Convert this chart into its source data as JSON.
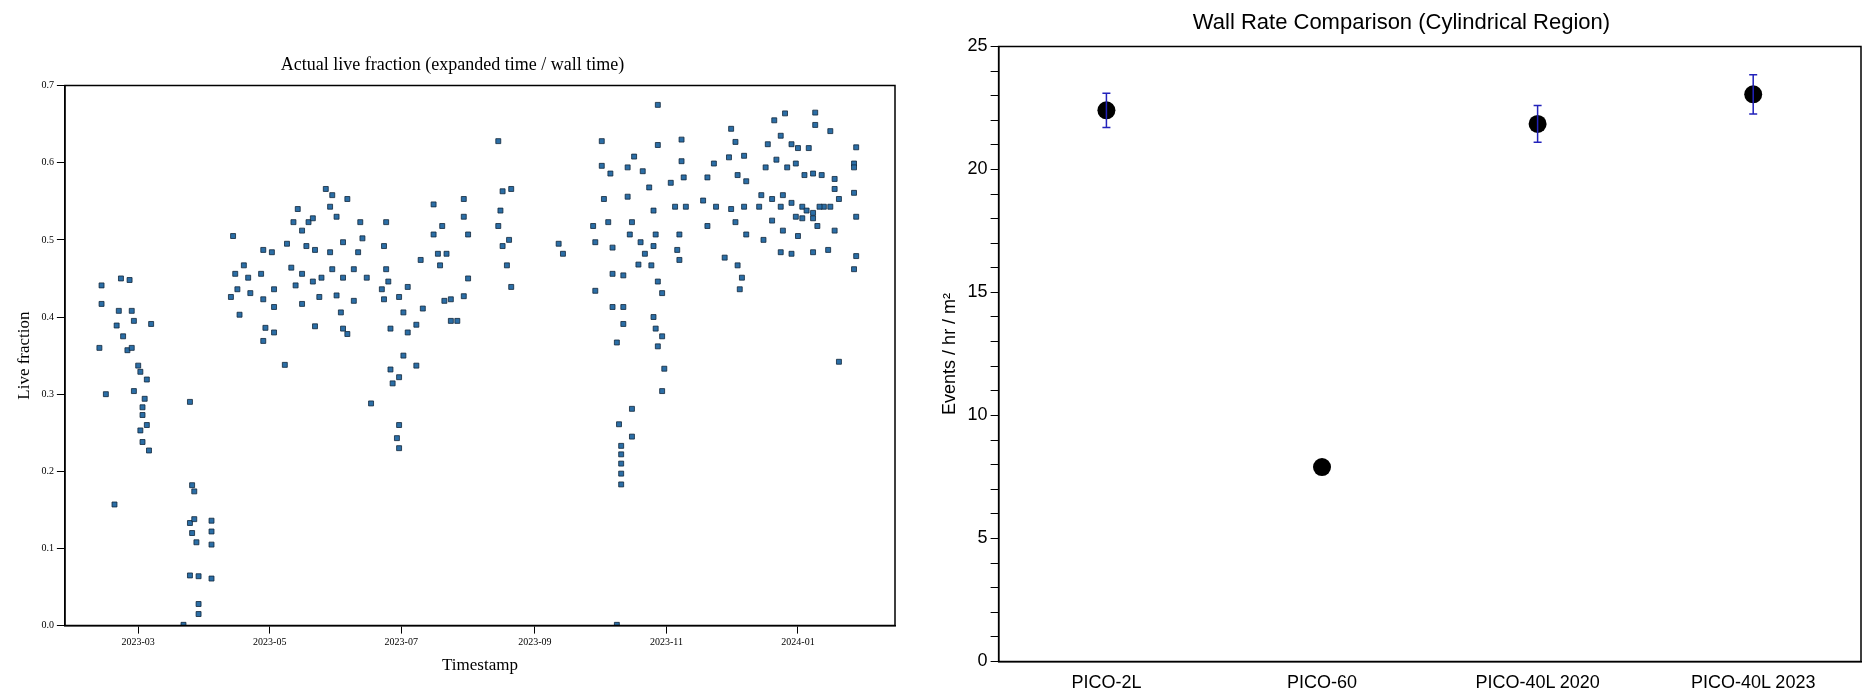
{
  "chart_data": [
    {
      "type": "scatter",
      "title": "Actual live fraction (expanded time / wall time)",
      "xlabel": "Timestamp",
      "ylabel": "Live fraction",
      "xlim": [
        "2023-01-26",
        "2024-02-15"
      ],
      "xticks": [
        {
          "value": "2023-03-01",
          "label": "2023-03"
        },
        {
          "value": "2023-05-01",
          "label": "2023-05"
        },
        {
          "value": "2023-07-01",
          "label": "2023-07"
        },
        {
          "value": "2023-09-01",
          "label": "2023-09"
        },
        {
          "value": "2023-11-01",
          "label": "2023-11"
        },
        {
          "value": "2024-01-01",
          "label": "2024-01"
        }
      ],
      "ylim": [
        0,
        0.7
      ],
      "yticks": [
        {
          "value": 0,
          "label": "0.0"
        },
        0.1,
        0.2,
        0.3,
        0.4,
        0.5,
        0.6,
        0.7
      ],
      "marker": "square",
      "x": [
        "2023-02-12",
        "2023-02-12",
        "2023-02-11",
        "2023-02-14",
        "2023-02-18",
        "2023-02-21",
        "2023-02-25",
        "2023-02-20",
        "2023-02-19",
        "2023-02-22",
        "2023-02-26",
        "2023-02-27",
        "2023-02-24",
        "2023-02-26",
        "2023-03-01",
        "2023-03-02",
        "2023-02-27",
        "2023-03-05",
        "2023-03-04",
        "2023-03-03",
        "2023-03-03",
        "2023-03-05",
        "2023-03-02",
        "2023-03-03",
        "2023-03-06",
        "2023-03-07",
        "2023-03-22",
        "2023-03-25",
        "2023-03-26",
        "2023-03-27",
        "2023-03-25",
        "2023-03-27",
        "2023-03-26",
        "2023-03-28",
        "2023-03-25",
        "2023-03-29",
        "2023-03-29",
        "2023-03-29",
        "2023-04-04",
        "2023-04-04",
        "2023-04-04",
        "2023-04-04",
        "2023-04-14",
        "2023-04-13",
        "2023-04-15",
        "2023-04-16",
        "2023-04-17",
        "2023-04-19",
        "2023-04-21",
        "2023-04-22",
        "2023-04-27",
        "2023-04-28",
        "2023-05-02",
        "2023-04-28",
        "2023-04-28",
        "2023-04-29",
        "2023-05-03",
        "2023-05-03",
        "2023-05-03",
        "2023-05-08",
        "2023-05-09",
        "2023-05-11",
        "2023-05-14",
        "2023-05-12",
        "2023-05-16",
        "2023-05-18",
        "2023-05-19",
        "2023-05-21",
        "2023-05-22",
        "2023-05-16",
        "2023-05-13",
        "2023-05-16",
        "2023-05-21",
        "2023-05-22",
        "2023-05-24",
        "2023-05-25",
        "2023-05-27",
        "2023-05-30",
        "2023-05-29",
        "2023-06-01",
        "2023-05-29",
        "2023-05-30",
        "2023-06-01",
        "2023-06-03",
        "2023-06-04",
        "2023-06-06",
        "2023-06-06",
        "2023-06-04",
        "2023-06-04",
        "2023-06-09",
        "2023-06-12",
        "2023-06-13",
        "2023-06-11",
        "2023-06-15",
        "2023-06-09",
        "2023-06-17",
        "2023-06-24",
        "2023-06-23",
        "2023-06-24",
        "2023-06-22",
        "2023-06-23",
        "2023-06-26",
        "2023-06-25",
        "2023-06-26",
        "2023-06-27",
        "2023-06-30",
        "2023-06-30",
        "2023-06-29",
        "2023-06-30",
        "2023-06-30",
        "2023-07-02",
        "2023-07-04",
        "2023-07-02",
        "2023-07-04",
        "2023-07-08",
        "2023-07-08",
        "2023-07-10",
        "2023-07-11",
        "2023-07-16",
        "2023-07-16",
        "2023-07-18",
        "2023-07-20",
        "2023-07-19",
        "2023-07-21",
        "2023-07-24",
        "2023-07-22",
        "2023-07-27",
        "2023-07-24",
        "2023-07-30",
        "2023-07-30",
        "2023-08-01",
        "2023-08-01",
        "2023-07-30",
        "2023-08-15",
        "2023-08-17",
        "2023-08-21",
        "2023-08-16",
        "2023-08-15",
        "2023-08-17",
        "2023-08-20",
        "2023-08-19",
        "2023-08-21",
        "2023-09-12",
        "2023-09-14",
        "2023-10-02",
        "2023-10-02",
        "2023-10-06",
        "2023-10-03",
        "2023-09-28",
        "2023-09-29",
        "2023-10-05",
        "2023-10-07",
        "2023-09-29",
        "2023-10-07",
        "2023-10-07",
        "2023-10-12",
        "2023-10-12",
        "2023-10-12",
        "2023-10-09",
        "2023-10-09",
        "2023-10-16",
        "2023-10-10",
        "2023-10-16",
        "2023-10-11",
        "2023-10-11",
        "2023-10-11",
        "2023-10-11",
        "2023-10-11",
        "2023-10-14",
        "2023-10-17",
        "2023-10-14",
        "2023-10-16",
        "2023-10-15",
        "2023-10-20",
        "2023-10-22",
        "2023-10-19",
        "2023-10-21",
        "2023-10-24",
        "2023-10-26",
        "2023-10-28",
        "2023-10-28",
        "2023-10-27",
        "2023-10-26",
        "2023-10-25",
        "2023-10-28",
        "2023-10-30",
        "2023-10-26",
        "2023-10-27",
        "2023-10-30",
        "2023-10-28",
        "2023-10-31",
        "2023-10-30",
        "2023-11-03",
        "2023-11-05",
        "2023-11-07",
        "2023-11-06",
        "2023-11-07",
        "2023-11-10",
        "2023-11-08",
        "2023-11-08",
        "2023-11-09",
        "2023-11-18",
        "2023-11-20",
        "2023-11-23",
        "2023-11-20",
        "2023-11-24",
        "2023-11-28",
        "2023-12-01",
        "2023-12-03",
        "2023-11-30",
        "2023-12-07",
        "2023-12-04",
        "2023-12-08",
        "2023-12-07",
        "2023-12-03",
        "2023-12-08",
        "2023-12-04",
        "2023-12-06",
        "2023-12-05",
        "2023-12-01",
        "2023-12-21",
        "2023-12-26",
        "2023-12-18",
        "2023-12-24",
        "2023-12-29",
        "2024-01-01",
        "2024-01-06",
        "2024-01-09",
        "2024-01-09",
        "2024-01-16",
        "2023-12-17",
        "2023-12-22",
        "2023-12-27",
        "2023-12-31",
        "2024-01-04",
        "2024-01-08",
        "2024-01-12",
        "2024-01-18",
        "2023-12-15",
        "2023-12-20",
        "2023-12-25",
        "2023-12-29",
        "2024-01-03",
        "2024-01-08",
        "2024-01-13",
        "2024-01-18",
        "2024-01-20",
        "2023-12-14",
        "2023-12-24",
        "2023-12-31",
        "2024-01-05",
        "2024-01-11",
        "2024-01-16",
        "2023-12-20",
        "2024-01-03",
        "2024-01-08",
        "2024-01-18",
        "2023-12-16",
        "2023-12-25",
        "2024-01-01",
        "2024-01-10",
        "2023-12-24",
        "2023-12-29",
        "2024-01-08",
        "2024-01-15",
        "2024-01-20",
        "2024-01-28",
        "2024-01-27",
        "2024-01-27",
        "2024-01-27",
        "2024-01-28",
        "2024-01-28",
        "2024-01-27"
      ],
      "series": [
        {
          "color": "#2b6ea6",
          "values": [
            0.441,
            0.417,
            0.36,
            0.3,
            0.157,
            0.45,
            0.448,
            0.408,
            0.389,
            0.375,
            0.408,
            0.395,
            0.357,
            0.36,
            0.337,
            0.329,
            0.304,
            0.319,
            0.294,
            0.283,
            0.273,
            0.26,
            0.253,
            0.238,
            0.227,
            0.391,
            0.001,
            0.29,
            0.182,
            0.174,
            0.133,
            0.138,
            0.12,
            0.108,
            0.065,
            0.064,
            0.028,
            0.015,
            0.136,
            0.122,
            0.105,
            0.061,
            0.505,
            0.426,
            0.456,
            0.436,
            0.403,
            0.467,
            0.451,
            0.431,
            0.456,
            0.487,
            0.484,
            0.423,
            0.369,
            0.386,
            0.38,
            0.413,
            0.436,
            0.338,
            0.495,
            0.464,
            0.54,
            0.523,
            0.512,
            0.492,
            0.523,
            0.528,
            0.487,
            0.456,
            0.441,
            0.417,
            0.446,
            0.388,
            0.426,
            0.451,
            0.566,
            0.558,
            0.543,
            0.53,
            0.484,
            0.462,
            0.428,
            0.406,
            0.385,
            0.378,
            0.553,
            0.497,
            0.451,
            0.462,
            0.523,
            0.502,
            0.484,
            0.451,
            0.421,
            0.288,
            0.523,
            0.492,
            0.462,
            0.436,
            0.423,
            0.385,
            0.446,
            0.332,
            0.314,
            0.322,
            0.26,
            0.243,
            0.23,
            0.426,
            0.406,
            0.439,
            0.35,
            0.38,
            0.337,
            0.39,
            0.474,
            0.411,
            0.546,
            0.507,
            0.482,
            0.518,
            0.467,
            0.421,
            0.395,
            0.482,
            0.395,
            0.423,
            0.553,
            0.53,
            0.507,
            0.45,
            0.427,
            0.628,
            0.563,
            0.566,
            0.538,
            0.518,
            0.492,
            0.5,
            0.467,
            0.439,
            0.495,
            0.482,
            0.628,
            0.596,
            0.586,
            0.553,
            0.518,
            0.497,
            0.523,
            0.49,
            0.434,
            0.456,
            0.413,
            0.413,
            0.391,
            0.454,
            0.367,
            0.001,
            0.281,
            0.261,
            0.245,
            0.233,
            0.222,
            0.21,
            0.197,
            0.183,
            0.594,
            0.608,
            0.556,
            0.523,
            0.507,
            0.497,
            0.482,
            0.468,
            0.589,
            0.568,
            0.538,
            0.675,
            0.623,
            0.507,
            0.492,
            0.467,
            0.446,
            0.431,
            0.4,
            0.385,
            0.375,
            0.362,
            0.333,
            0.304,
            0.574,
            0.543,
            0.507,
            0.487,
            0.474,
            0.543,
            0.63,
            0.602,
            0.581,
            0.551,
            0.581,
            0.599,
            0.518,
            0.543,
            0.477,
            0.644,
            0.627,
            0.607,
            0.609,
            0.584,
            0.576,
            0.543,
            0.523,
            0.507,
            0.467,
            0.451,
            0.436,
            0.54,
            0.655,
            0.664,
            0.624,
            0.635,
            0.624,
            0.619,
            0.619,
            0.665,
            0.649,
            0.641,
            0.594,
            0.604,
            0.594,
            0.599,
            0.584,
            0.586,
            0.584,
            0.579,
            0.558,
            0.553,
            0.558,
            0.548,
            0.543,
            0.535,
            0.543,
            0.566,
            0.553,
            0.543,
            0.543,
            0.53,
            0.538,
            0.543,
            0.543,
            0.525,
            0.528,
            0.528,
            0.512,
            0.5,
            0.512,
            0.505,
            0.518,
            0.484,
            0.482,
            0.484,
            0.487,
            0.342,
            0.62,
            0.599,
            0.594,
            0.561,
            0.53,
            0.479,
            0.462
          ]
        }
      ]
    },
    {
      "type": "scatter",
      "title": "Wall Rate Comparison (Cylindrical Region)",
      "ylabel": "Events / hr / m²",
      "categories": [
        "PICO-2L",
        "PICO-60",
        "PICO-40L 2020",
        "PICO-40L 2023"
      ],
      "ylim": [
        0,
        25
      ],
      "yticks": [
        0,
        {
          "value": 1,
          "label": null
        },
        {
          "value": 2,
          "label": null
        },
        {
          "value": 3,
          "label": null
        },
        {
          "value": 4,
          "label": null
        },
        5,
        {
          "value": 6,
          "label": null
        },
        {
          "value": 7,
          "label": null
        },
        {
          "value": 8,
          "label": null
        },
        {
          "value": 9,
          "label": null
        },
        10,
        {
          "value": 11,
          "label": null
        },
        {
          "value": 12,
          "label": null
        },
        {
          "value": 13,
          "label": null
        },
        {
          "value": 14,
          "label": null
        },
        15,
        {
          "value": 16,
          "label": null
        },
        {
          "value": 17,
          "label": null
        },
        {
          "value": 18,
          "label": null
        },
        {
          "value": 19,
          "label": null
        },
        20,
        {
          "value": 21,
          "label": null
        },
        {
          "value": 22,
          "label": null
        },
        {
          "value": 23,
          "label": null
        },
        {
          "value": 24,
          "label": null
        },
        25
      ],
      "marker": "circle",
      "series": [
        {
          "color": "#000000",
          "values": [
            22.4,
            7.9,
            21.85,
            23.05
          ],
          "errors": [
            0.7,
            null,
            0.75,
            0.8
          ]
        }
      ]
    }
  ]
}
